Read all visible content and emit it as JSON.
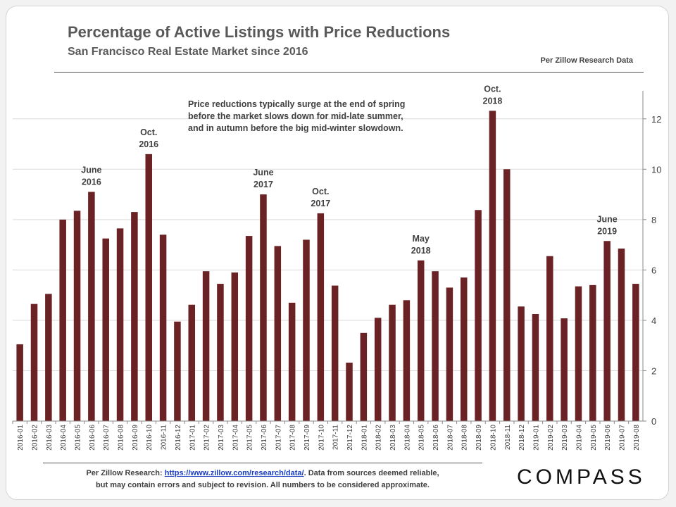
{
  "header": {
    "title": "Percentage of Active Listings with Price Reductions",
    "subtitle": "San Francisco Real Estate Market since 2016",
    "source": "Per Zillow Research Data"
  },
  "annotation": {
    "line1": "Price reductions typically surge at the end of spring",
    "line2": "before the market slows down for mid-late summer,",
    "line3": "and in autumn before the big mid-winter slowdown."
  },
  "footer": {
    "prefix": "Per Zillow Research:",
    "link": "https://www.zillow.com/research/data/",
    "line1_rest": ". Data from sources deemed reliable,",
    "line2": "but may contain errors and subject to revision.  All numbers to be considered approximate."
  },
  "logo": "COMPASS",
  "colors": {
    "bar": "#6b2224",
    "text": "#595959",
    "grid": "#d9d9d9"
  },
  "chart_data": {
    "type": "bar",
    "title": "Percentage of Active Listings with Price Reductions",
    "subtitle": "San Francisco Real Estate Market since 2016",
    "xlabel": "",
    "ylabel": "",
    "ylim": [
      0,
      13
    ],
    "yticks": [
      0,
      2,
      4,
      6,
      8,
      10,
      12
    ],
    "y_axis_side": "right",
    "grid": true,
    "legend": "none",
    "categories": [
      "2016-01",
      "2016-02",
      "2016-03",
      "2016-04",
      "2016-05",
      "2016-06",
      "2016-07",
      "2016-08",
      "2016-09",
      "2016-10",
      "2016-11",
      "2016-12",
      "2017-01",
      "2017-02",
      "2017-03",
      "2017-04",
      "2017-05",
      "2017-06",
      "2017-07",
      "2017-08",
      "2017-09",
      "2017-10",
      "2017-11",
      "2017-12",
      "2018-01",
      "2018-02",
      "2018-03",
      "2018-04",
      "2018-05",
      "2018-06",
      "2018-07",
      "2018-08",
      "2018-09",
      "2018-10",
      "2018-11",
      "2018-12",
      "2019-01",
      "2019-02",
      "2019-03",
      "2019-04",
      "2019-05",
      "2019-06",
      "2019-07",
      "2019-08"
    ],
    "values": [
      3.05,
      4.65,
      5.05,
      8.0,
      8.35,
      9.1,
      7.25,
      7.65,
      8.3,
      10.6,
      7.4,
      3.95,
      4.62,
      5.95,
      5.45,
      5.9,
      7.35,
      9.0,
      6.95,
      4.7,
      7.2,
      8.25,
      5.38,
      2.32,
      3.5,
      4.1,
      4.62,
      4.8,
      6.38,
      5.95,
      5.3,
      5.7,
      8.38,
      12.32,
      10.0,
      4.55,
      4.25,
      6.55,
      4.08,
      5.35,
      5.4,
      7.15,
      6.85,
      5.45
    ],
    "annotations": [
      {
        "category": "2016-06",
        "line1": "June",
        "line2": "2016"
      },
      {
        "category": "2016-10",
        "line1": "Oct.",
        "line2": "2016"
      },
      {
        "category": "2017-06",
        "line1": "June",
        "line2": "2017"
      },
      {
        "category": "2017-10",
        "line1": "Oct.",
        "line2": "2017"
      },
      {
        "category": "2018-05",
        "line1": "May",
        "line2": "2018"
      },
      {
        "category": "2018-10",
        "line1": "Oct.",
        "line2": "2018"
      },
      {
        "category": "2019-06",
        "line1": "June",
        "line2": "2019"
      }
    ]
  }
}
